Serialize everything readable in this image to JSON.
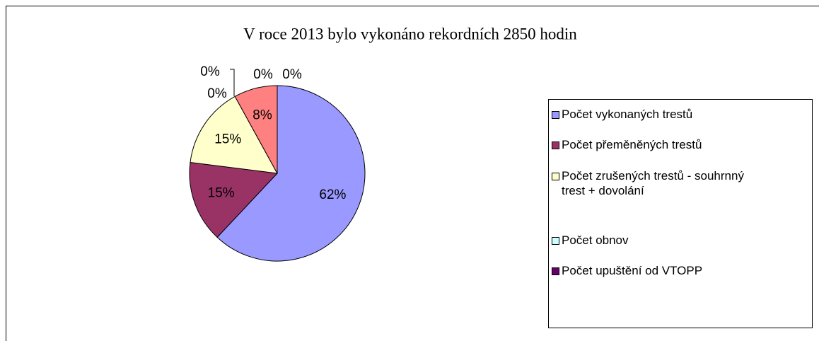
{
  "chart_data": {
    "type": "pie",
    "title": "V roce 2013 bylo vykonáno rekordních 2850 hodin",
    "categories": [
      "Počet vykonaných trestů",
      "Počet přeměněných trestů",
      "Počet zrušených trestů - souhrnný trest + dovolání",
      "Počet obnov",
      "Počet upuštění od VTOPP",
      null,
      null,
      null
    ],
    "values": [
      62,
      15,
      15,
      0,
      0,
      8,
      0,
      0
    ],
    "value_labels": [
      "62%",
      "15%",
      "15%",
      "0%",
      "0%",
      "8%",
      "0%",
      "0%"
    ],
    "colors": [
      "#9999ff",
      "#993366",
      "#ffffcc",
      "#ccffff",
      "#660066",
      "#ff8080",
      "#0066cc",
      "#ccccff"
    ],
    "legend": "right"
  }
}
